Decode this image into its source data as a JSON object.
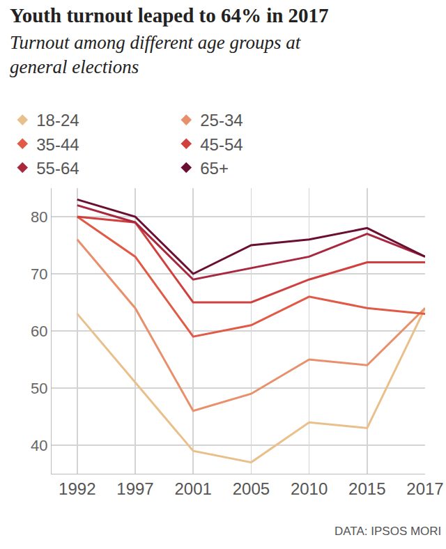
{
  "chart_data": {
    "type": "line",
    "title": "Youth turnout leaped to 64% in 2017",
    "subtitle": "Turnout among different age groups at general elections",
    "source": "DATA: IPSOS MORI",
    "categories": [
      "1992",
      "1997",
      "2001",
      "2005",
      "2010",
      "2015",
      "2017"
    ],
    "series": [
      {
        "name": "18-24",
        "color": "#e9c08c",
        "values": [
          63,
          51,
          39,
          37,
          44,
          43,
          64
        ]
      },
      {
        "name": "25-34",
        "color": "#e8906c",
        "values": [
          76,
          64,
          46,
          49,
          55,
          54,
          64
        ]
      },
      {
        "name": "35-44",
        "color": "#e05a46",
        "values": [
          80,
          73,
          59,
          61,
          66,
          64,
          63
        ]
      },
      {
        "name": "45-54",
        "color": "#d0403e",
        "values": [
          80,
          79,
          65,
          65,
          69,
          72,
          72
        ]
      },
      {
        "name": "55-64",
        "color": "#a8283f",
        "values": [
          82,
          79,
          69,
          71,
          73,
          77,
          73
        ]
      },
      {
        "name": "65+",
        "color": "#6b0f32",
        "values": [
          83,
          80,
          70,
          75,
          76,
          78,
          73
        ]
      }
    ],
    "ylim": [
      35,
      85
    ],
    "yticks": [
      40,
      50,
      60,
      70,
      80
    ],
    "grid": true,
    "legend": "top-left",
    "marker": "diamond"
  }
}
